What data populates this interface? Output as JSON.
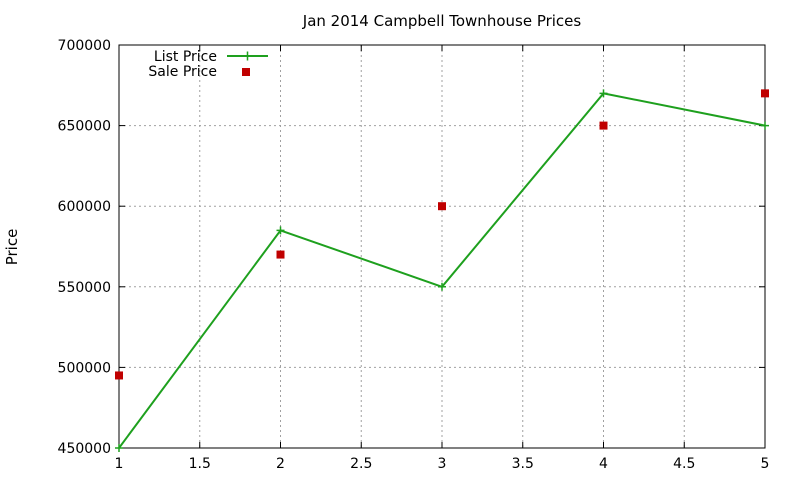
{
  "chart_data": {
    "type": "line",
    "title": "Jan 2014 Campbell Townhouse Prices",
    "xlabel": "",
    "ylabel": "Price",
    "xlim": [
      1,
      5
    ],
    "ylim": [
      450000,
      700000
    ],
    "xticks": [
      "1",
      "1.5",
      "2",
      "2.5",
      "3",
      "3.5",
      "4",
      "4.5",
      "5"
    ],
    "yticks": [
      "450000",
      "500000",
      "550000",
      "600000",
      "650000",
      "700000"
    ],
    "grid": true,
    "legend_position": "top-left",
    "series": [
      {
        "name": "List Price",
        "style": "line-with-plus-markers",
        "color": "#1ea01e",
        "x": [
          1,
          2,
          3,
          4,
          5
        ],
        "y": [
          450000,
          585000,
          550000,
          670000,
          650000
        ]
      },
      {
        "name": "Sale Price",
        "style": "square-markers",
        "color": "#c00000",
        "x": [
          1,
          2,
          3,
          4,
          5
        ],
        "y": [
          495000,
          570000,
          600000,
          650000,
          670000
        ]
      }
    ]
  }
}
